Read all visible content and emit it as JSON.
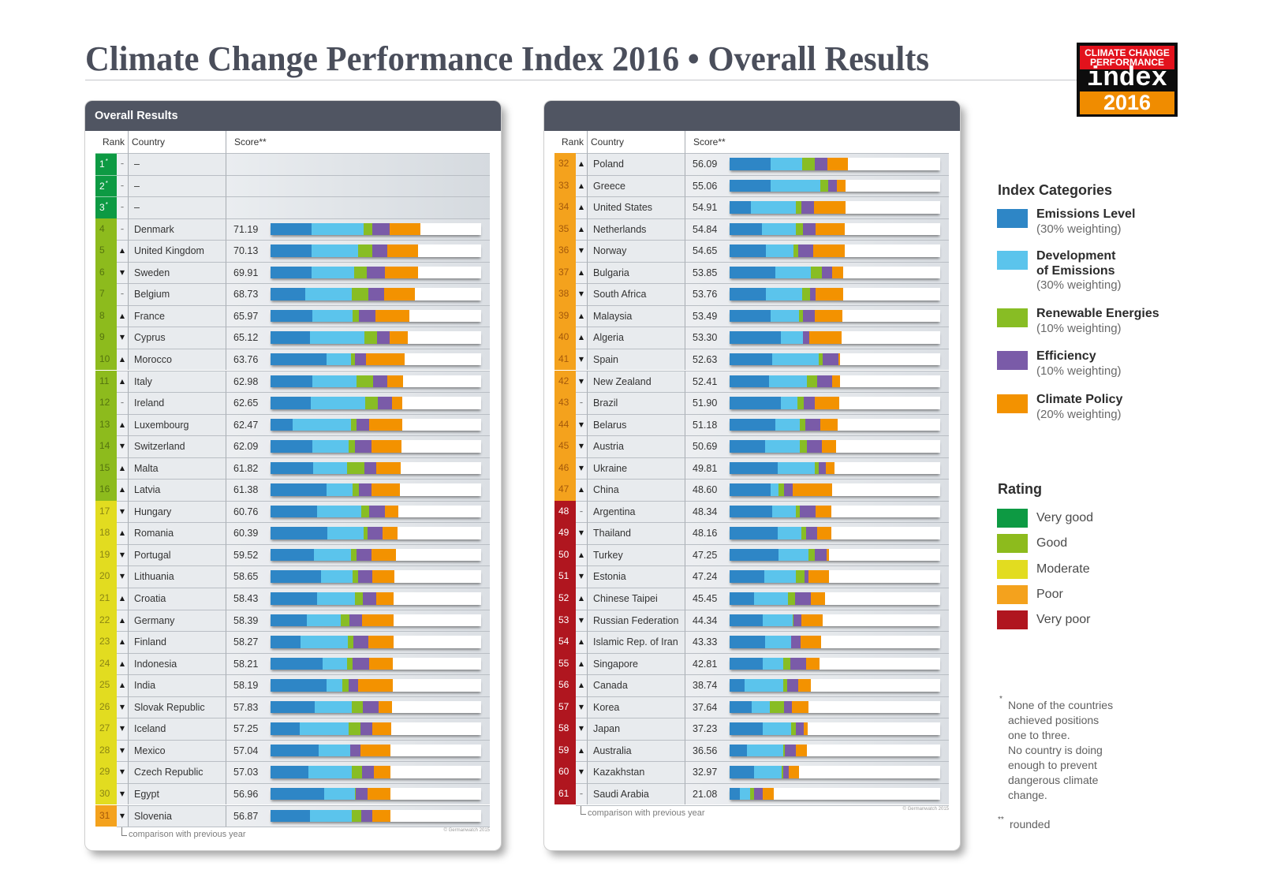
{
  "title": "Climate Change Performance Index 2016 • Overall Results",
  "logo": {
    "line1": "CLIMATE CHANGE",
    "line2": "PERFORMANCE",
    "word": "index",
    "year": "2016"
  },
  "panel_header": "Overall Results",
  "columns": {
    "rank": "Rank",
    "country": "Country",
    "score": "Score**"
  },
  "trend_icons": {
    "up": "▲",
    "down": "▼",
    "same": "–"
  },
  "notes": {
    "comparison": "comparison with previous year",
    "copyright": "© Germanwatch 2015"
  },
  "category_legend": {
    "title": "Index Categories",
    "items": [
      {
        "lines": [
          "Emissions Level"
        ],
        "weighting": "(30% weighting)",
        "color": "#2e86c6"
      },
      {
        "lines": [
          "Development",
          "of Emissions"
        ],
        "weighting": "(30% weighting)",
        "color": "#5bc4ec"
      },
      {
        "lines": [
          "Renewable Energies"
        ],
        "weighting": "(10% weighting)",
        "color": "#88bd24"
      },
      {
        "lines": [
          "Efficiency"
        ],
        "weighting": "(10% weighting)",
        "color": "#7a5ba8"
      },
      {
        "lines": [
          "Climate Policy"
        ],
        "weighting": "(20% weighting)",
        "color": "#f39200"
      }
    ]
  },
  "rating_legend": {
    "title": "Rating",
    "items": [
      {
        "id": "very_good",
        "label": "Very good",
        "color": "#0d9a43",
        "text_color": "#ffffff"
      },
      {
        "id": "good",
        "label": "Good",
        "color": "#8dbb1d",
        "text_color": "#55740f"
      },
      {
        "id": "moderate",
        "label": "Moderate",
        "color": "#e2dc20",
        "text_color": "#8a8514"
      },
      {
        "id": "poor",
        "label": "Poor",
        "color": "#f4a21d",
        "text_color": "#a4590b"
      },
      {
        "id": "very_poor",
        "label": "Very poor",
        "color": "#b0161f",
        "text_color": "#ffffff"
      }
    ]
  },
  "footnotes": {
    "star_marker": "*",
    "star_lines": [
      "None of the countries",
      "achieved positions",
      "one to three.",
      "No country is doing",
      "enough to prevent",
      "dangerous climate",
      "change."
    ],
    "double_star_marker": "**",
    "double_star_text": "rounded"
  },
  "chart_data": {
    "type": "bar",
    "orientation": "horizontal",
    "stacked": true,
    "title": "Overall Results",
    "xlabel": "Score**",
    "xlim": [
      0,
      100
    ],
    "series": [
      {
        "name": "Emissions Level",
        "weight": 0.3,
        "color": "#2e86c6"
      },
      {
        "name": "Development of Emissions",
        "weight": 0.3,
        "color": "#5bc4ec"
      },
      {
        "name": "Renewable Energies",
        "weight": 0.1,
        "color": "#88bd24"
      },
      {
        "name": "Efficiency",
        "weight": 0.1,
        "color": "#7a5ba8"
      },
      {
        "name": "Climate Policy",
        "weight": 0.2,
        "color": "#f39200"
      }
    ],
    "rows": [
      {
        "rank": "1",
        "rank_note": "*",
        "trend": "same",
        "country": "–",
        "score": null,
        "rating": "very_good",
        "values": null
      },
      {
        "rank": "2",
        "rank_note": "*",
        "trend": "same",
        "country": "–",
        "score": null,
        "rating": "very_good",
        "values": null
      },
      {
        "rank": "3",
        "rank_note": "*",
        "trend": "same",
        "country": "–",
        "score": null,
        "rating": "very_good",
        "values": null
      },
      {
        "rank": "4",
        "trend": "same",
        "country": "Denmark",
        "score": "71.19",
        "rating": "good",
        "values": [
          19.6,
          24.5,
          4.4,
          8.0,
          14.7
        ]
      },
      {
        "rank": "5",
        "trend": "up",
        "country": "United Kingdom",
        "score": "70.13",
        "rating": "good",
        "values": [
          19.4,
          22.1,
          7.0,
          6.9,
          14.7
        ]
      },
      {
        "rank": "6",
        "trend": "down",
        "country": "Sweden",
        "score": "69.91",
        "rating": "good",
        "values": [
          19.6,
          20.0,
          6.0,
          8.7,
          15.6
        ]
      },
      {
        "rank": "7",
        "trend": "same",
        "country": "Belgium",
        "score": "68.73",
        "rating": "good",
        "values": [
          16.6,
          21.9,
          8.0,
          7.4,
          14.8
        ]
      },
      {
        "rank": "8",
        "trend": "up",
        "country": "France",
        "score": "65.97",
        "rating": "good",
        "values": [
          20.0,
          19.1,
          2.8,
          8.1,
          16.0
        ]
      },
      {
        "rank": "9",
        "trend": "down",
        "country": "Cyprus",
        "score": "65.12",
        "rating": "good",
        "values": [
          18.8,
          25.6,
          6.1,
          5.9,
          8.7
        ]
      },
      {
        "rank": "10",
        "trend": "up",
        "country": "Morocco",
        "score": "63.76",
        "rating": "good",
        "values": [
          26.5,
          11.6,
          2.1,
          5.0,
          18.6
        ]
      },
      {
        "rank": "11",
        "trend": "up",
        "country": "Italy",
        "score": "62.98",
        "rating": "good",
        "values": [
          20.0,
          20.9,
          7.9,
          6.6,
          7.6
        ]
      },
      {
        "rank": "12",
        "trend": "same",
        "country": "Ireland",
        "score": "62.65",
        "rating": "good",
        "values": [
          19.1,
          25.9,
          5.8,
          7.0,
          4.9
        ]
      },
      {
        "rank": "13",
        "trend": "up",
        "country": "Luxembourg",
        "score": "62.47",
        "rating": "good",
        "values": [
          10.4,
          27.7,
          2.8,
          5.9,
          15.7
        ]
      },
      {
        "rank": "14",
        "trend": "down",
        "country": "Switzerland",
        "score": "62.09",
        "rating": "good",
        "values": [
          19.8,
          17.1,
          3.1,
          8.0,
          14.1
        ]
      },
      {
        "rank": "15",
        "trend": "up",
        "country": "Malta",
        "score": "61.82",
        "rating": "good",
        "values": [
          20.4,
          15.9,
          8.1,
          5.9,
          11.5
        ]
      },
      {
        "rank": "16",
        "trend": "up",
        "country": "Latvia",
        "score": "61.38",
        "rating": "good",
        "values": [
          26.5,
          12.5,
          2.9,
          5.9,
          13.6
        ]
      },
      {
        "rank": "17",
        "trend": "down",
        "country": "Hungary",
        "score": "60.76",
        "rating": "moderate",
        "values": [
          22.1,
          21.0,
          3.8,
          7.3,
          6.6
        ]
      },
      {
        "rank": "18",
        "trend": "up",
        "country": "Romania",
        "score": "60.39",
        "rating": "moderate",
        "values": [
          26.9,
          17.2,
          1.9,
          7.1,
          7.3
        ]
      },
      {
        "rank": "19",
        "trend": "down",
        "country": "Portugal",
        "score": "59.52",
        "rating": "moderate",
        "values": [
          20.6,
          17.5,
          2.9,
          6.9,
          11.6
        ]
      },
      {
        "rank": "20",
        "trend": "down",
        "country": "Lithuania",
        "score": "58.65",
        "rating": "moderate",
        "values": [
          24.1,
          14.9,
          2.6,
          6.9,
          10.2
        ]
      },
      {
        "rank": "21",
        "trend": "up",
        "country": "Croatia",
        "score": "58.43",
        "rating": "moderate",
        "values": [
          22.1,
          17.9,
          4.0,
          6.2,
          8.2
        ]
      },
      {
        "rank": "22",
        "trend": "up",
        "country": "Germany",
        "score": "58.39",
        "rating": "moderate",
        "values": [
          17.3,
          16.1,
          3.9,
          6.1,
          15.0
        ]
      },
      {
        "rank": "23",
        "trend": "up",
        "country": "Finland",
        "score": "58.27",
        "rating": "moderate",
        "values": [
          14.4,
          22.2,
          2.7,
          7.1,
          11.9
        ]
      },
      {
        "rank": "24",
        "trend": "up",
        "country": "Indonesia",
        "score": "58.21",
        "rating": "moderate",
        "values": [
          24.6,
          11.6,
          2.8,
          7.7,
          11.5
        ]
      },
      {
        "rank": "25",
        "trend": "up",
        "country": "India",
        "score": "58.19",
        "rating": "moderate",
        "values": [
          26.5,
          7.5,
          2.9,
          4.6,
          16.7
        ]
      },
      {
        "rank": "26",
        "trend": "down",
        "country": "Slovak Republic",
        "score": "57.83",
        "rating": "moderate",
        "values": [
          21.0,
          17.7,
          5.0,
          7.7,
          6.4
        ]
      },
      {
        "rank": "27",
        "trend": "down",
        "country": "Iceland",
        "score": "57.25",
        "rating": "moderate",
        "values": [
          14.0,
          23.2,
          5.5,
          5.6,
          8.9
        ]
      },
      {
        "rank": "28",
        "trend": "down",
        "country": "Mexico",
        "score": "57.04",
        "rating": "moderate",
        "values": [
          22.9,
          14.9,
          0.1,
          4.9,
          14.2
        ]
      },
      {
        "rank": "29",
        "trend": "down",
        "country": "Czech Republic",
        "score": "57.03",
        "rating": "moderate",
        "values": [
          17.9,
          20.5,
          5.1,
          5.5,
          8.0
        ]
      },
      {
        "rank": "30",
        "trend": "down",
        "country": "Egypt",
        "score": "56.96",
        "rating": "moderate",
        "values": [
          25.4,
          14.6,
          0.6,
          5.6,
          10.8
        ]
      },
      {
        "rank": "31",
        "trend": "down",
        "country": "Slovenia",
        "score": "56.87",
        "rating": "poor",
        "values": [
          18.8,
          19.7,
          4.4,
          5.5,
          8.5
        ]
      },
      {
        "rank": "32",
        "trend": "up",
        "country": "Poland",
        "score": "56.09",
        "rating": "poor",
        "values": [
          19.4,
          15.2,
          5.7,
          6.0,
          9.8
        ]
      },
      {
        "rank": "33",
        "trend": "up",
        "country": "Greece",
        "score": "55.06",
        "rating": "poor",
        "values": [
          19.4,
          23.8,
          3.7,
          4.1,
          4.1
        ]
      },
      {
        "rank": "34",
        "trend": "up",
        "country": "United States",
        "score": "54.91",
        "rating": "poor",
        "values": [
          10.0,
          21.6,
          2.4,
          6.0,
          14.9
        ]
      },
      {
        "rank": "35",
        "trend": "up",
        "country": "Netherlands",
        "score": "54.84",
        "rating": "poor",
        "values": [
          15.4,
          16.1,
          3.5,
          5.9,
          13.9
        ]
      },
      {
        "rank": "36",
        "trend": "down",
        "country": "Norway",
        "score": "54.65",
        "rating": "poor",
        "values": [
          17.2,
          13.1,
          2.4,
          7.0,
          14.9
        ]
      },
      {
        "rank": "37",
        "trend": "up",
        "country": "Bulgaria",
        "score": "53.85",
        "rating": "poor",
        "values": [
          21.6,
          17.1,
          5.0,
          5.0,
          5.2
        ]
      },
      {
        "rank": "38",
        "trend": "down",
        "country": "South Africa",
        "score": "53.76",
        "rating": "poor",
        "values": [
          17.2,
          17.1,
          3.8,
          2.9,
          12.8
        ]
      },
      {
        "rank": "39",
        "trend": "up",
        "country": "Malaysia",
        "score": "53.49",
        "rating": "poor",
        "values": [
          19.6,
          13.2,
          2.1,
          5.6,
          13.0
        ]
      },
      {
        "rank": "40",
        "trend": "up",
        "country": "Algeria",
        "score": "53.30",
        "rating": "poor",
        "values": [
          24.4,
          10.4,
          0.1,
          3.1,
          15.3
        ]
      },
      {
        "rank": "41",
        "trend": "down",
        "country": "Spain",
        "score": "52.63",
        "rating": "poor",
        "values": [
          20.2,
          22.0,
          1.9,
          7.5,
          1.0
        ]
      },
      {
        "rank": "42",
        "trend": "down",
        "country": "New Zealand",
        "score": "52.41",
        "rating": "poor",
        "values": [
          18.7,
          18.1,
          4.6,
          7.2,
          3.8
        ]
      },
      {
        "rank": "43",
        "trend": "same",
        "country": "Brazil",
        "score": "51.90",
        "rating": "poor",
        "values": [
          24.4,
          7.9,
          3.1,
          5.0,
          11.5
        ]
      },
      {
        "rank": "44",
        "trend": "down",
        "country": "Belarus",
        "score": "51.18",
        "rating": "poor",
        "values": [
          21.6,
          11.7,
          2.6,
          7.1,
          8.2
        ]
      },
      {
        "rank": "45",
        "trend": "down",
        "country": "Austria",
        "score": "50.69",
        "rating": "poor",
        "values": [
          16.9,
          16.6,
          3.4,
          7.1,
          6.7
        ]
      },
      {
        "rank": "46",
        "trend": "down",
        "country": "Ukraine",
        "score": "49.81",
        "rating": "poor",
        "values": [
          22.9,
          17.4,
          2.2,
          3.1,
          4.2
        ]
      },
      {
        "rank": "47",
        "trend": "up",
        "country": "China",
        "score": "48.60",
        "rating": "poor",
        "values": [
          19.4,
          3.7,
          2.7,
          4.1,
          18.7
        ]
      },
      {
        "rank": "48",
        "trend": "same",
        "country": "Argentina",
        "score": "48.34",
        "rating": "very_poor",
        "values": [
          20.2,
          11.4,
          1.9,
          7.4,
          7.4
        ]
      },
      {
        "rank": "49",
        "trend": "down",
        "country": "Thailand",
        "score": "48.16",
        "rating": "very_poor",
        "values": [
          22.9,
          11.1,
          2.5,
          5.1,
          6.6
        ]
      },
      {
        "rank": "50",
        "trend": "up",
        "country": "Turkey",
        "score": "47.25",
        "rating": "very_poor",
        "values": [
          23.4,
          14.1,
          3.1,
          5.4,
          1.2
        ]
      },
      {
        "rank": "51",
        "trend": "down",
        "country": "Estonia",
        "score": "47.24",
        "rating": "very_poor",
        "values": [
          16.4,
          14.9,
          4.1,
          1.9,
          9.9
        ]
      },
      {
        "rank": "52",
        "trend": "up",
        "country": "Chinese Taipei",
        "score": "45.45",
        "rating": "very_poor",
        "values": [
          11.6,
          16.2,
          3.4,
          7.3,
          6.9
        ]
      },
      {
        "rank": "53",
        "trend": "down",
        "country": "Russian Federation",
        "score": "44.34",
        "rating": "very_poor",
        "values": [
          15.9,
          14.1,
          0.2,
          3.9,
          10.2
        ]
      },
      {
        "rank": "54",
        "trend": "up",
        "country": "Islamic Rep. of Iran",
        "score": "43.33",
        "rating": "very_poor",
        "values": [
          16.9,
          12.5,
          0.0,
          4.4,
          9.5
        ]
      },
      {
        "rank": "55",
        "trend": "up",
        "country": "Singapore",
        "score": "42.81",
        "rating": "very_poor",
        "values": [
          15.6,
          10.0,
          3.4,
          7.5,
          6.3
        ]
      },
      {
        "rank": "56",
        "trend": "up",
        "country": "Canada",
        "score": "38.74",
        "rating": "very_poor",
        "values": [
          7.2,
          18.4,
          1.9,
          5.0,
          6.2
        ]
      },
      {
        "rank": "57",
        "trend": "down",
        "country": "Korea",
        "score": "37.64",
        "rating": "very_poor",
        "values": [
          10.6,
          8.5,
          6.7,
          3.7,
          8.1
        ]
      },
      {
        "rank": "58",
        "trend": "down",
        "country": "Japan",
        "score": "37.23",
        "rating": "very_poor",
        "values": [
          15.9,
          13.5,
          2.2,
          3.7,
          1.9
        ]
      },
      {
        "rank": "59",
        "trend": "up",
        "country": "Australia",
        "score": "36.56",
        "rating": "very_poor",
        "values": [
          8.4,
          17.0,
          1.0,
          4.9,
          5.3
        ]
      },
      {
        "rank": "60",
        "trend": "down",
        "country": "Kazakhstan",
        "score": "32.97",
        "rating": "very_poor",
        "values": [
          11.6,
          13.0,
          0.8,
          2.8,
          4.8
        ]
      },
      {
        "rank": "61",
        "trend": "same",
        "country": "Saudi Arabia",
        "score": "21.08",
        "rating": "very_poor",
        "values": [
          5.0,
          4.6,
          2.0,
          4.0,
          5.5
        ]
      }
    ]
  }
}
